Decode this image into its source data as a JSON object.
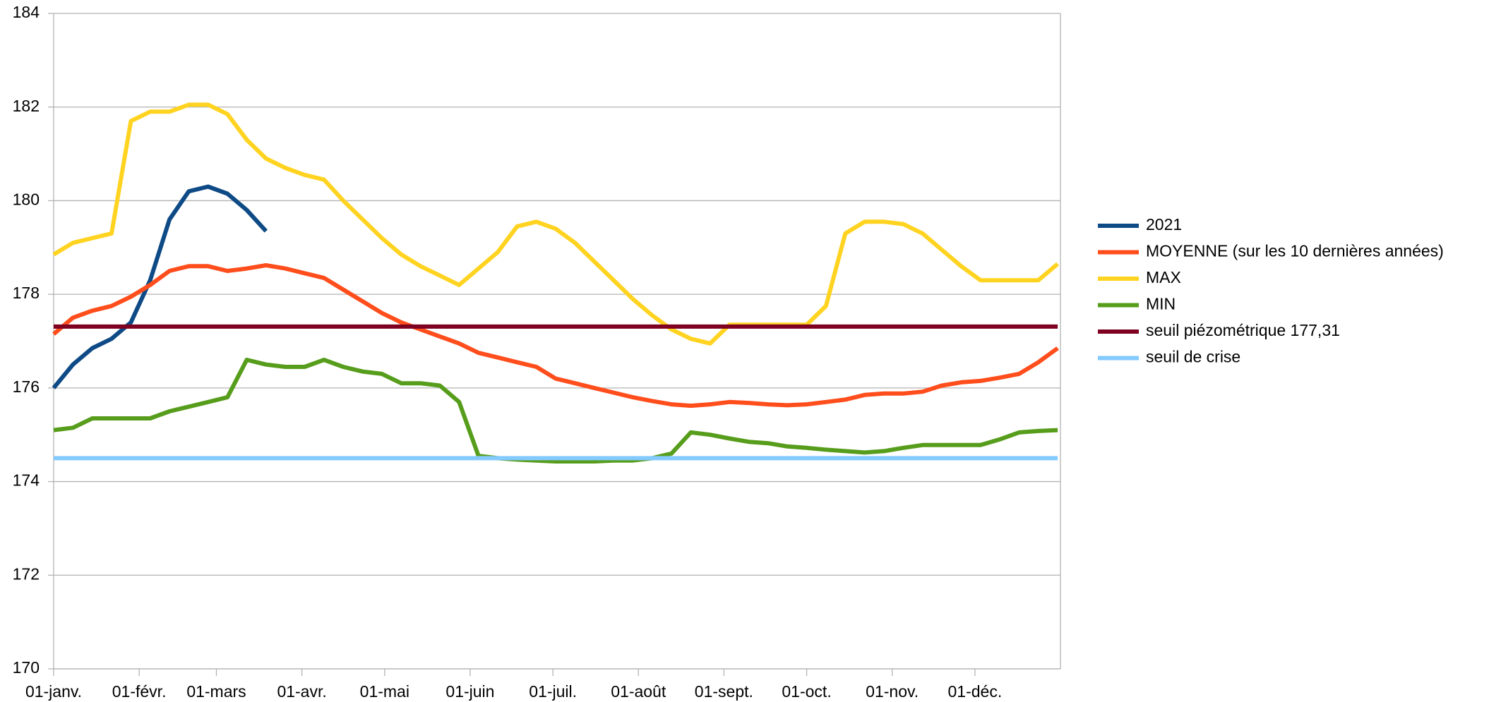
{
  "chart_data": {
    "type": "line",
    "x": [
      0,
      7,
      14,
      21,
      28,
      35,
      42,
      49,
      56,
      63,
      70,
      77,
      84,
      91,
      98,
      105,
      112,
      119,
      126,
      133,
      140,
      147,
      154,
      161,
      168,
      175,
      182,
      189,
      196,
      203,
      210,
      217,
      224,
      231,
      238,
      245,
      252,
      259,
      266,
      273,
      280,
      287,
      294,
      301,
      308,
      315,
      322,
      329,
      336,
      343,
      350,
      357,
      364
    ],
    "xlim": [
      0,
      365
    ],
    "xticks": [
      {
        "value": 0,
        "label": "01-janv."
      },
      {
        "value": 31,
        "label": "01-févr."
      },
      {
        "value": 59,
        "label": "01-mars"
      },
      {
        "value": 90,
        "label": "01-avr."
      },
      {
        "value": 120,
        "label": "01-mai"
      },
      {
        "value": 151,
        "label": "01-juin"
      },
      {
        "value": 181,
        "label": "01-juil."
      },
      {
        "value": 212,
        "label": "01-août"
      },
      {
        "value": 243,
        "label": "01-sept."
      },
      {
        "value": 273,
        "label": "01-oct."
      },
      {
        "value": 304,
        "label": "01-nov."
      },
      {
        "value": 334,
        "label": "01-déc."
      }
    ],
    "ylim": [
      170,
      184
    ],
    "yticks": [
      170,
      172,
      174,
      176,
      178,
      180,
      182,
      184
    ],
    "grid": true,
    "legend": "right",
    "series": [
      {
        "name": "2021",
        "color": "#0e4a86",
        "values": [
          176.0,
          176.5,
          176.85,
          177.05,
          177.4,
          178.3,
          179.6,
          180.2,
          180.3,
          180.15,
          179.8,
          179.35,
          null,
          null,
          null,
          null,
          null,
          null,
          null,
          null,
          null,
          null,
          null,
          null,
          null,
          null,
          null,
          null,
          null,
          null,
          null,
          null,
          null,
          null,
          null,
          null,
          null,
          null,
          null,
          null,
          null,
          null,
          null,
          null,
          null,
          null,
          null,
          null,
          null,
          null,
          null,
          null,
          null
        ]
      },
      {
        "name": "MOYENNE (sur les 10 dernières années)",
        "color": "#ff4d1c",
        "values": [
          177.15,
          177.5,
          177.65,
          177.75,
          177.95,
          178.2,
          178.5,
          178.6,
          178.6,
          178.5,
          178.55,
          178.62,
          178.55,
          178.45,
          178.35,
          178.1,
          177.85,
          177.6,
          177.4,
          177.25,
          177.1,
          176.95,
          176.75,
          176.65,
          176.55,
          176.45,
          176.2,
          176.1,
          176.0,
          175.9,
          175.8,
          175.72,
          175.65,
          175.62,
          175.65,
          175.7,
          175.68,
          175.65,
          175.63,
          175.65,
          175.7,
          175.75,
          175.85,
          175.88,
          175.88,
          175.92,
          176.05,
          176.12,
          176.15,
          176.22,
          176.3,
          176.55,
          176.85
        ]
      },
      {
        "name": "MAX",
        "color": "#ffd320",
        "values": [
          178.85,
          179.1,
          179.2,
          179.3,
          181.7,
          181.9,
          181.9,
          182.05,
          182.05,
          181.85,
          181.3,
          180.9,
          180.7,
          180.55,
          180.45,
          180.0,
          179.6,
          179.2,
          178.85,
          178.6,
          178.4,
          178.2,
          178.55,
          178.9,
          179.45,
          179.55,
          179.4,
          179.1,
          178.7,
          178.3,
          177.9,
          177.55,
          177.25,
          177.05,
          176.95,
          177.35,
          177.35,
          177.35,
          177.35,
          177.35,
          177.75,
          179.3,
          179.55,
          179.55,
          179.5,
          179.3,
          178.95,
          178.6,
          178.3,
          178.3,
          178.3,
          178.3,
          178.65
        ]
      },
      {
        "name": "MIN",
        "color": "#579d1c",
        "values": [
          175.1,
          175.15,
          175.35,
          175.35,
          175.35,
          175.35,
          175.5,
          175.6,
          175.7,
          175.8,
          176.6,
          176.5,
          176.45,
          176.45,
          176.6,
          176.45,
          176.35,
          176.3,
          176.1,
          176.1,
          176.05,
          175.7,
          174.55,
          174.5,
          174.47,
          174.45,
          174.43,
          174.43,
          174.43,
          174.45,
          174.45,
          174.5,
          174.6,
          175.05,
          175.0,
          174.92,
          174.85,
          174.82,
          174.75,
          174.72,
          174.68,
          174.65,
          174.62,
          174.65,
          174.72,
          174.78,
          174.78,
          174.78,
          174.78,
          174.9,
          175.05,
          175.08,
          175.1
        ]
      },
      {
        "name": "seuil piézométrique 177,31",
        "color": "#7e0021",
        "values": [
          177.31,
          177.31,
          177.31,
          177.31,
          177.31,
          177.31,
          177.31,
          177.31,
          177.31,
          177.31,
          177.31,
          177.31,
          177.31,
          177.31,
          177.31,
          177.31,
          177.31,
          177.31,
          177.31,
          177.31,
          177.31,
          177.31,
          177.31,
          177.31,
          177.31,
          177.31,
          177.31,
          177.31,
          177.31,
          177.31,
          177.31,
          177.31,
          177.31,
          177.31,
          177.31,
          177.31,
          177.31,
          177.31,
          177.31,
          177.31,
          177.31,
          177.31,
          177.31,
          177.31,
          177.31,
          177.31,
          177.31,
          177.31,
          177.31,
          177.31,
          177.31,
          177.31,
          177.31
        ]
      },
      {
        "name": "seuil de crise",
        "color": "#83caff",
        "values": [
          174.5,
          174.5,
          174.5,
          174.5,
          174.5,
          174.5,
          174.5,
          174.5,
          174.5,
          174.5,
          174.5,
          174.5,
          174.5,
          174.5,
          174.5,
          174.5,
          174.5,
          174.5,
          174.5,
          174.5,
          174.5,
          174.5,
          174.5,
          174.5,
          174.5,
          174.5,
          174.5,
          174.5,
          174.5,
          174.5,
          174.5,
          174.5,
          174.5,
          174.5,
          174.5,
          174.5,
          174.5,
          174.5,
          174.5,
          174.5,
          174.5,
          174.5,
          174.5,
          174.5,
          174.5,
          174.5,
          174.5,
          174.5,
          174.5,
          174.5,
          174.5,
          174.5,
          174.5
        ]
      }
    ]
  }
}
